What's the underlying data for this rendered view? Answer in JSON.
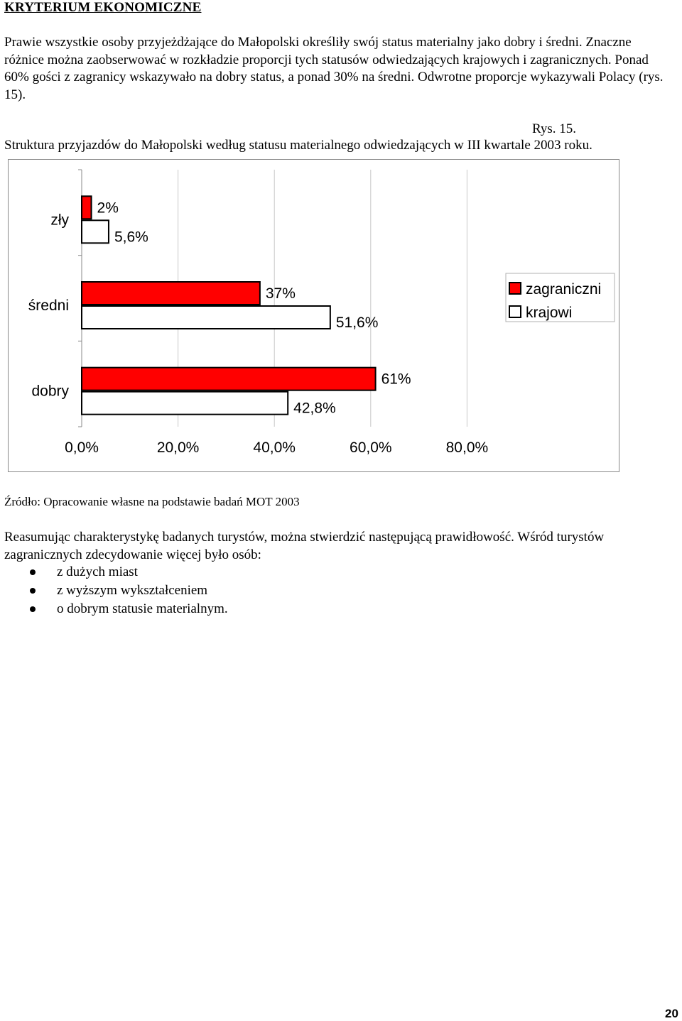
{
  "heading": "KRYTERIUM EKONOMICZNE",
  "intro": "Prawie wszystkie osoby przyjeżdżające do Małopolski określiły swój status materialny jako dobry i średni. Znaczne różnice można zaobserwować w rozkładzie proporcji tych statusów odwiedzających krajowych i zagranicznych. Ponad 60% gości z zagranicy wskazywało na dobry status, a ponad 30% na średni. Odwrotne proporcje wykazywali Polacy (rys. 15).",
  "figure_label": "Rys. 15.",
  "figure_caption": "Struktura przyjazdów do Małopolski według statusu materialnego odwiedzających w III kwartale 2003 roku.",
  "chart_data": {
    "type": "bar",
    "orientation": "horizontal",
    "categories": [
      "zły",
      "średni",
      "dobry"
    ],
    "series": [
      {
        "name": "zagraniczni",
        "values": [
          2,
          37,
          61
        ],
        "labels": [
          "2%",
          "37%",
          "61%"
        ],
        "color": "#ff0000"
      },
      {
        "name": "krajowi",
        "values": [
          5.6,
          51.6,
          42.8
        ],
        "labels": [
          "5,6%",
          "51,6%",
          "42,8%"
        ],
        "color": "#ffffff"
      }
    ],
    "xticks": [
      "0,0%",
      "20,0%",
      "40,0%",
      "60,0%",
      "80,0%"
    ],
    "xlim": [
      0,
      80
    ],
    "grid": true,
    "legend": "right"
  },
  "source": "Źródło: Opracowanie własne na podstawie badań MOT 2003",
  "summary": "Reasumując charakterystykę badanych turystów, można stwierdzić następującą prawidłowość. Wśród turystów zagranicznych zdecydowanie więcej było osób:",
  "bullets": [
    "z dużych miast",
    "z wyższym wykształceniem",
    "o dobrym statusie materialnym."
  ],
  "page_number": "20"
}
